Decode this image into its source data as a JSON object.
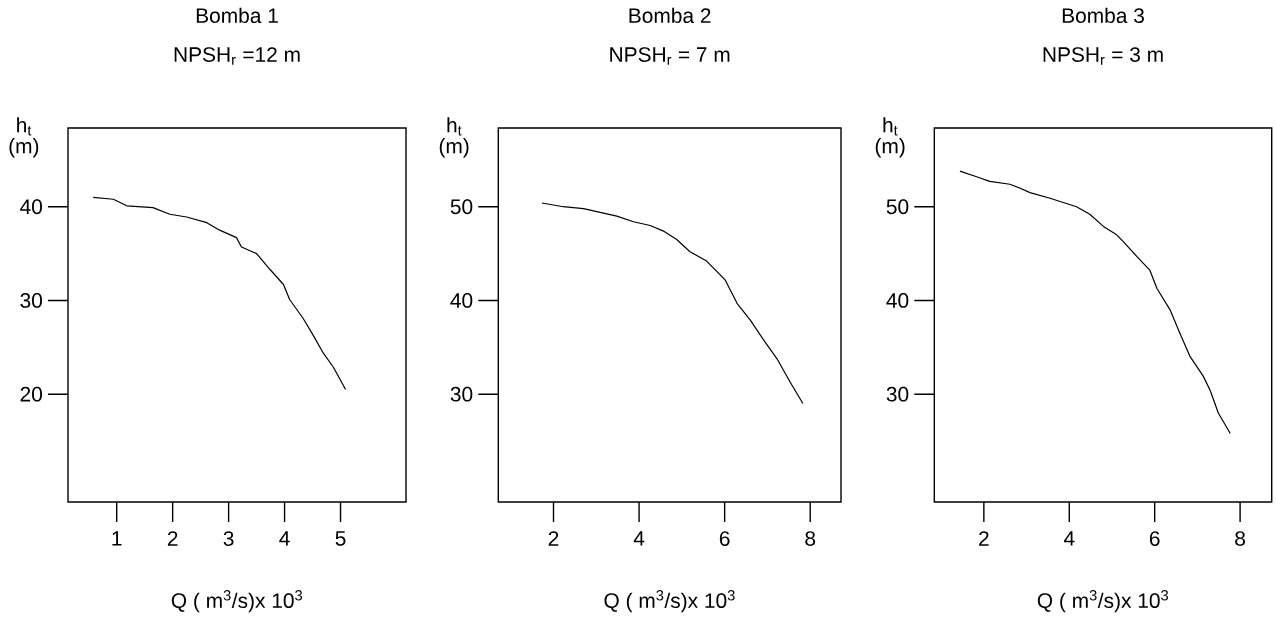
{
  "chart_data": [
    {
      "type": "line",
      "title": "Bomba 1",
      "subtitle": "NPSH$_{r}$ =12 m",
      "xlabel": "Q ( m$^{3}$/s)x 10$^{3}$",
      "ylabel": "h$_{t}$ (m)",
      "color": "#000000",
      "x": [
        0.58,
        0.94,
        1.18,
        1.65,
        1.95,
        2.25,
        2.61,
        2.84,
        3.14,
        3.23,
        3.5,
        3.74,
        3.98,
        4.09,
        4.33,
        4.51,
        4.69,
        4.87,
        5.09
      ],
      "values": [
        41.0,
        40.8,
        40.1,
        39.9,
        39.2,
        38.9,
        38.3,
        37.5,
        36.7,
        35.7,
        35.0,
        33.3,
        31.7,
        30.1,
        28.1,
        26.3,
        24.4,
        22.9,
        20.5
      ],
      "xlim": [
        0.13,
        6.17
      ],
      "ylim": [
        8.5,
        48.4
      ],
      "xticks": [
        1,
        2,
        3,
        4,
        5
      ],
      "yticks": [
        20,
        30,
        40
      ]
    },
    {
      "type": "line",
      "title": "Bomba 2",
      "subtitle": "NPSH$_{r}$ = 7 m",
      "xlabel": "Q ( m$^{3}$/s)x 10$^{3}$",
      "ylabel": "h$_{t}$ (m)",
      "color": "#000000",
      "x": [
        1.73,
        2.23,
        2.7,
        3.09,
        3.48,
        3.87,
        4.26,
        4.57,
        4.88,
        5.19,
        5.58,
        6.01,
        6.29,
        6.6,
        6.91,
        7.22,
        7.53,
        7.83
      ],
      "values": [
        50.4,
        50.0,
        49.8,
        49.4,
        49.0,
        48.4,
        48.0,
        47.4,
        46.5,
        45.2,
        44.2,
        42.2,
        39.7,
        37.9,
        35.8,
        33.8,
        31.3,
        29.0
      ],
      "xlim": [
        0.71,
        8.72
      ],
      "ylim": [
        18.5,
        58.4
      ],
      "xticks": [
        2,
        4,
        6,
        8
      ],
      "yticks": [
        30,
        40,
        50
      ]
    },
    {
      "type": "line",
      "title": "Bomba 3",
      "subtitle": "NPSH$_{r}$ =  3 m",
      "xlabel": "Q ( m$^{3}$/s)x 10$^{3}$",
      "ylabel": "h$_{t}$ (m)",
      "color": "#000000",
      "x": [
        1.44,
        1.83,
        2.14,
        2.61,
        2.84,
        3.08,
        3.55,
        4.17,
        4.48,
        4.8,
        5.11,
        5.26,
        5.58,
        5.89,
        6.05,
        6.36,
        6.59,
        6.83,
        7.14,
        7.3,
        7.49,
        7.77
      ],
      "values": [
        53.8,
        53.2,
        52.7,
        52.4,
        52.0,
        51.5,
        50.9,
        50.0,
        49.2,
        47.9,
        47.0,
        46.3,
        44.7,
        43.2,
        41.3,
        39.0,
        36.5,
        34.0,
        31.9,
        30.4,
        28.0,
        25.8
      ],
      "xlim": [
        0.84,
        8.74
      ],
      "ylim": [
        18.5,
        58.4
      ],
      "xticks": [
        2,
        4,
        6,
        8
      ],
      "yticks": [
        30,
        40,
        50
      ]
    }
  ]
}
